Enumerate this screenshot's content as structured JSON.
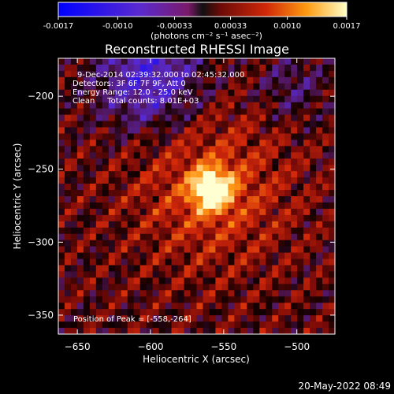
{
  "colorbar": {
    "ticks": [
      "-0.0017",
      "-0.0010",
      "-0.00033",
      "0.00033",
      "0.0010",
      "0.0017"
    ],
    "tick_values": [
      -0.0017,
      -0.001,
      -0.00033,
      0.00033,
      0.001,
      0.0017
    ],
    "range": [
      -0.0017,
      0.0017
    ],
    "units": "(photons cm⁻² s⁻¹ asec⁻²)"
  },
  "plot": {
    "title": "Reconstructed RHESSI Image",
    "info_lines": [
      "9-Dec-2014 02:39:32.000 to 02:45:32.000",
      "Detectors: 3F 6F 7F 9F, Att 0",
      "Energy Range: 12.0 - 25.0 keV",
      "Clean     Total counts: 8.01E+03"
    ],
    "peak_label": "Position of Peak = [-558,-264]"
  },
  "footer": {
    "timestamp": "20-May-2022 08:49"
  },
  "colors": {
    "background": "#000000",
    "text": "#ffffff"
  },
  "chart_data": {
    "type": "heatmap",
    "title": "Reconstructed RHESSI Image",
    "xlabel": "Heliocentric X (arcsec)",
    "ylabel": "Heliocentric Y (arcsec)",
    "xlim": [
      -663,
      -474
    ],
    "ylim": [
      -363,
      -174
    ],
    "xticks": [
      -650,
      -600,
      -550,
      -500
    ],
    "yticks": [
      -350,
      -300,
      -250,
      -200
    ],
    "colormap": "blue-purple-red-yellow-white",
    "peak": {
      "x": -558,
      "y": -264
    },
    "energy_range_keV": [
      12.0,
      25.0
    ],
    "detectors": [
      "3F",
      "6F",
      "7F",
      "9F"
    ],
    "total_counts": 8010
  }
}
